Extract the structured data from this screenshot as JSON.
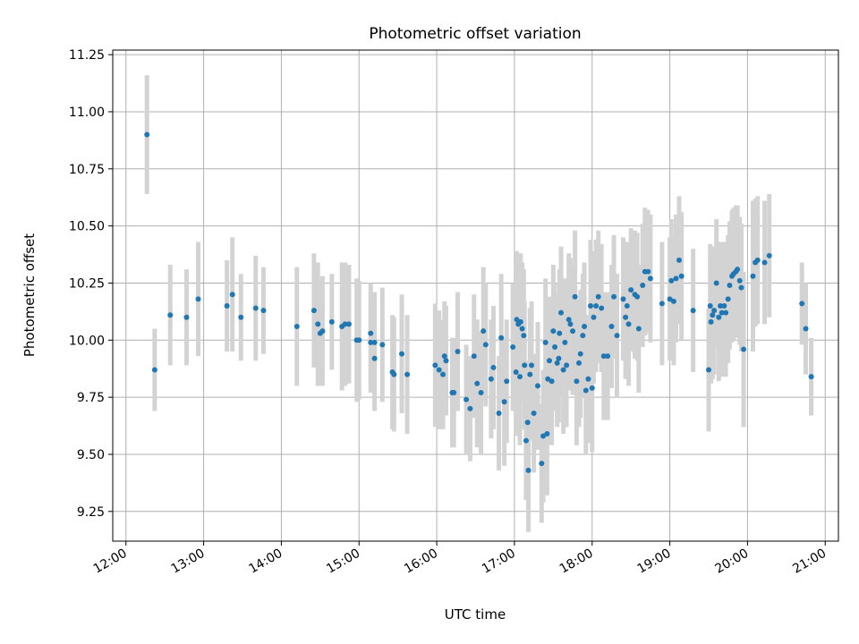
{
  "chart_data": {
    "type": "scatter",
    "title": "Photometric offset variation",
    "xlabel": "UTC time",
    "ylabel": "Photometric offset",
    "x_unit": "UTC hour",
    "xlim": [
      11.83,
      21.17
    ],
    "ylim": [
      9.12,
      11.27
    ],
    "grid": true,
    "x_ticks": [
      {
        "value": 12,
        "label": "12:00"
      },
      {
        "value": 13,
        "label": "13:00"
      },
      {
        "value": 14,
        "label": "14:00"
      },
      {
        "value": 15,
        "label": "15:00"
      },
      {
        "value": 16,
        "label": "16:00"
      },
      {
        "value": 17,
        "label": "17:00"
      },
      {
        "value": 18,
        "label": "18:00"
      },
      {
        "value": 19,
        "label": "19:00"
      },
      {
        "value": 20,
        "label": "20:00"
      },
      {
        "value": 21,
        "label": "21:00"
      }
    ],
    "y_ticks": [
      {
        "value": 9.25,
        "label": "9.25"
      },
      {
        "value": 9.5,
        "label": "9.50"
      },
      {
        "value": 9.75,
        "label": "9.75"
      },
      {
        "value": 10.0,
        "label": "10.00"
      },
      {
        "value": 10.25,
        "label": "10.25"
      },
      {
        "value": 10.5,
        "label": "10.50"
      },
      {
        "value": 10.75,
        "label": "10.75"
      },
      {
        "value": 11.0,
        "label": "11.00"
      },
      {
        "value": 11.25,
        "label": "11.25"
      }
    ],
    "colors": {
      "point": "#1f77b4",
      "errorbar": "#d3d3d3",
      "grid": "#b0b0b0"
    },
    "points": [
      [
        12.27,
        10.9,
        0.26
      ],
      [
        12.37,
        9.87,
        0.18
      ],
      [
        12.57,
        10.11,
        0.22
      ],
      [
        12.78,
        10.1,
        0.21
      ],
      [
        12.93,
        10.18,
        0.25
      ],
      [
        13.3,
        10.15,
        0.2
      ],
      [
        13.37,
        10.2,
        0.25
      ],
      [
        13.48,
        10.1,
        0.19
      ],
      [
        13.67,
        10.14,
        0.23
      ],
      [
        13.77,
        10.13,
        0.19
      ],
      [
        14.2,
        10.06,
        0.26
      ],
      [
        14.42,
        10.13,
        0.25
      ],
      [
        14.47,
        10.07,
        0.27
      ],
      [
        14.5,
        10.03,
        0.23
      ],
      [
        14.53,
        10.04,
        0.24
      ],
      [
        14.65,
        10.08,
        0.21
      ],
      [
        14.78,
        10.06,
        0.28
      ],
      [
        14.82,
        10.07,
        0.27
      ],
      [
        14.87,
        10.07,
        0.26
      ],
      [
        14.97,
        10.0,
        0.27
      ],
      [
        15.0,
        10.0,
        0.26
      ],
      [
        15.15,
        10.03,
        0.22
      ],
      [
        15.15,
        9.99,
        0.22
      ],
      [
        15.2,
        9.99,
        0.22
      ],
      [
        15.2,
        9.92,
        0.23
      ],
      [
        15.3,
        9.98,
        0.25
      ],
      [
        15.43,
        9.86,
        0.25
      ],
      [
        15.45,
        9.85,
        0.25
      ],
      [
        15.55,
        9.94,
        0.26
      ],
      [
        15.62,
        9.85,
        0.26
      ],
      [
        15.98,
        9.89,
        0.27
      ],
      [
        16.03,
        9.87,
        0.26
      ],
      [
        16.08,
        9.85,
        0.24
      ],
      [
        16.1,
        9.93,
        0.24
      ],
      [
        16.12,
        9.91,
        0.24
      ],
      [
        16.2,
        9.77,
        0.24
      ],
      [
        16.22,
        9.77,
        0.24
      ],
      [
        16.27,
        9.95,
        0.26
      ],
      [
        16.38,
        9.74,
        0.24
      ],
      [
        16.43,
        9.7,
        0.23
      ],
      [
        16.48,
        9.93,
        0.27
      ],
      [
        16.52,
        9.81,
        0.28
      ],
      [
        16.57,
        9.77,
        0.27
      ],
      [
        16.6,
        10.04,
        0.28
      ],
      [
        16.63,
        9.98,
        0.27
      ],
      [
        16.7,
        9.83,
        0.26
      ],
      [
        16.73,
        9.88,
        0.27
      ],
      [
        16.8,
        9.68,
        0.25
      ],
      [
        16.83,
        10.01,
        0.28
      ],
      [
        16.87,
        9.73,
        0.28
      ],
      [
        16.9,
        9.82,
        0.27
      ],
      [
        16.98,
        9.97,
        0.28
      ],
      [
        17.02,
        9.86,
        0.28
      ],
      [
        17.03,
        10.09,
        0.3
      ],
      [
        17.05,
        10.07,
        0.3
      ],
      [
        17.07,
        9.84,
        0.3
      ],
      [
        17.08,
        10.08,
        0.3
      ],
      [
        17.1,
        10.05,
        0.29
      ],
      [
        17.12,
        10.02,
        0.29
      ],
      [
        17.13,
        9.89,
        0.28
      ],
      [
        17.15,
        9.56,
        0.26
      ],
      [
        17.17,
        9.64,
        0.27
      ],
      [
        17.18,
        9.43,
        0.27
      ],
      [
        17.2,
        9.85,
        0.29
      ],
      [
        17.22,
        9.89,
        0.28
      ],
      [
        17.25,
        9.68,
        0.26
      ],
      [
        17.3,
        9.8,
        0.28
      ],
      [
        17.35,
        9.46,
        0.26
      ],
      [
        17.37,
        9.58,
        0.29
      ],
      [
        17.4,
        9.99,
        0.28
      ],
      [
        17.42,
        9.59,
        0.27
      ],
      [
        17.43,
        9.83,
        0.28
      ],
      [
        17.45,
        9.91,
        0.28
      ],
      [
        17.48,
        9.82,
        0.28
      ],
      [
        17.5,
        10.04,
        0.29
      ],
      [
        17.52,
        9.97,
        0.28
      ],
      [
        17.55,
        9.9,
        0.28
      ],
      [
        17.57,
        9.92,
        0.28
      ],
      [
        17.58,
        10.03,
        0.28
      ],
      [
        17.6,
        10.12,
        0.29
      ],
      [
        17.63,
        9.87,
        0.28
      ],
      [
        17.65,
        9.99,
        0.28
      ],
      [
        17.67,
        9.89,
        0.27
      ],
      [
        17.7,
        10.09,
        0.29
      ],
      [
        17.72,
        10.07,
        0.29
      ],
      [
        17.75,
        10.04,
        0.28
      ],
      [
        17.78,
        10.19,
        0.29
      ],
      [
        17.8,
        9.82,
        0.28
      ],
      [
        17.83,
        9.9,
        0.28
      ],
      [
        17.85,
        9.94,
        0.28
      ],
      [
        17.88,
        10.02,
        0.27
      ],
      [
        17.9,
        10.06,
        0.28
      ],
      [
        17.92,
        9.78,
        0.28
      ],
      [
        17.95,
        9.83,
        0.28
      ],
      [
        17.98,
        10.15,
        0.29
      ],
      [
        18.0,
        9.79,
        0.28
      ],
      [
        18.02,
        10.1,
        0.29
      ],
      [
        18.05,
        10.15,
        0.29
      ],
      [
        18.08,
        10.19,
        0.29
      ],
      [
        18.12,
        10.14,
        0.28
      ],
      [
        18.15,
        9.93,
        0.28
      ],
      [
        18.2,
        9.93,
        0.28
      ],
      [
        18.25,
        10.06,
        0.27
      ],
      [
        18.28,
        10.19,
        0.27
      ],
      [
        18.32,
        10.02,
        0.27
      ],
      [
        18.4,
        10.18,
        0.27
      ],
      [
        18.43,
        10.1,
        0.27
      ],
      [
        18.45,
        10.15,
        0.28
      ],
      [
        18.47,
        10.07,
        0.27
      ],
      [
        18.5,
        10.22,
        0.27
      ],
      [
        18.55,
        10.2,
        0.28
      ],
      [
        18.58,
        10.19,
        0.28
      ],
      [
        18.6,
        10.05,
        0.28
      ],
      [
        18.65,
        10.24,
        0.27
      ],
      [
        18.68,
        10.3,
        0.28
      ],
      [
        18.72,
        10.3,
        0.27
      ],
      [
        18.75,
        10.27,
        0.28
      ],
      [
        18.9,
        10.16,
        0.27
      ],
      [
        19.0,
        10.18,
        0.27
      ],
      [
        19.02,
        10.26,
        0.27
      ],
      [
        19.05,
        10.17,
        0.28
      ],
      [
        19.08,
        10.27,
        0.28
      ],
      [
        19.12,
        10.35,
        0.28
      ],
      [
        19.15,
        10.28,
        0.28
      ],
      [
        19.3,
        10.13,
        0.27
      ],
      [
        19.5,
        9.87,
        0.27
      ],
      [
        19.52,
        10.15,
        0.27
      ],
      [
        19.53,
        10.08,
        0.27
      ],
      [
        19.55,
        10.11,
        0.28
      ],
      [
        19.57,
        10.13,
        0.28
      ],
      [
        19.6,
        10.25,
        0.28
      ],
      [
        19.63,
        10.1,
        0.28
      ],
      [
        19.65,
        10.15,
        0.28
      ],
      [
        19.67,
        10.12,
        0.28
      ],
      [
        19.7,
        10.15,
        0.28
      ],
      [
        19.72,
        10.12,
        0.28
      ],
      [
        19.75,
        10.18,
        0.28
      ],
      [
        19.77,
        10.24,
        0.28
      ],
      [
        19.8,
        10.28,
        0.29
      ],
      [
        19.82,
        10.29,
        0.29
      ],
      [
        19.85,
        10.3,
        0.29
      ],
      [
        19.87,
        10.31,
        0.28
      ],
      [
        19.9,
        10.26,
        0.28
      ],
      [
        19.92,
        10.23,
        0.28
      ],
      [
        19.95,
        9.96,
        0.34
      ],
      [
        20.07,
        10.28,
        0.33
      ],
      [
        20.1,
        10.34,
        0.28
      ],
      [
        20.13,
        10.35,
        0.28
      ],
      [
        20.22,
        10.34,
        0.27
      ],
      [
        20.28,
        10.37,
        0.27
      ],
      [
        20.7,
        10.16,
        0.18
      ],
      [
        20.75,
        10.05,
        0.2
      ],
      [
        20.82,
        9.84,
        0.17
      ]
    ]
  }
}
